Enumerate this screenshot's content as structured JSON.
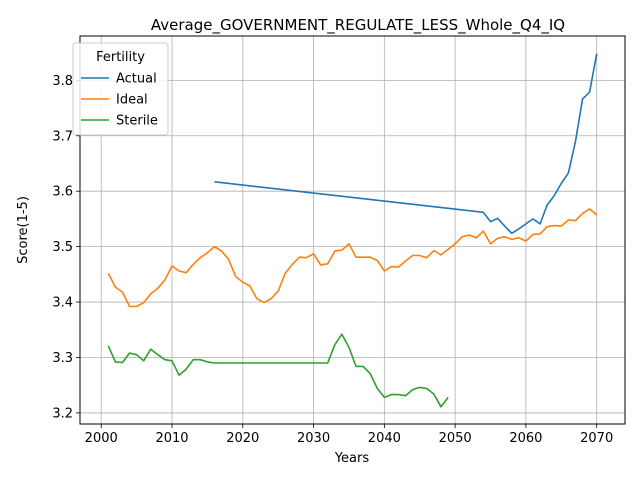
{
  "chart_data": {
    "type": "line",
    "title": "Average_GOVERNMENT_REGULATE_LESS_Whole_Q4_IQ",
    "xlabel": "Years",
    "ylabel": "Score(1-5)",
    "xlim": [
      1997,
      2074
    ],
    "ylim": [
      3.18,
      3.88
    ],
    "xticks": [
      2000,
      2010,
      2020,
      2030,
      2040,
      2050,
      2060,
      2070
    ],
    "yticks": [
      3.2,
      3.3,
      3.4,
      3.5,
      3.6,
      3.7,
      3.8
    ],
    "grid": true,
    "legend": {
      "title": "Fertility",
      "placement": "top-left"
    },
    "series": [
      {
        "name": "Actual",
        "color": "#1f77b4",
        "x": [
          2016,
          2054,
          2055,
          2056,
          2057,
          2058,
          2059,
          2060,
          2061,
          2062,
          2063,
          2064,
          2065,
          2066,
          2067,
          2068,
          2069,
          2070
        ],
        "y": [
          3.617,
          3.562,
          3.545,
          3.551,
          3.537,
          3.524,
          3.532,
          3.541,
          3.55,
          3.541,
          3.575,
          3.592,
          3.614,
          3.633,
          3.69,
          3.766,
          3.779,
          3.848
        ]
      },
      {
        "name": "Ideal",
        "color": "#ff7f0e",
        "x": [
          2001,
          2002,
          2003,
          2004,
          2005,
          2006,
          2007,
          2008,
          2009,
          2010,
          2011,
          2012,
          2013,
          2014,
          2015,
          2016,
          2017,
          2018,
          2019,
          2020,
          2021,
          2022,
          2023,
          2024,
          2025,
          2026,
          2027,
          2028,
          2029,
          2030,
          2031,
          2032,
          2033,
          2034,
          2035,
          2036,
          2037,
          2038,
          2039,
          2040,
          2041,
          2042,
          2043,
          2044,
          2045,
          2046,
          2047,
          2048,
          2049,
          2050,
          2051,
          2052,
          2053,
          2054,
          2055,
          2056,
          2057,
          2058,
          2059,
          2060,
          2061,
          2062,
          2063,
          2064,
          2065,
          2066,
          2067,
          2068,
          2069,
          2070
        ],
        "y": [
          3.452,
          3.427,
          3.418,
          3.392,
          3.392,
          3.399,
          3.415,
          3.425,
          3.44,
          3.465,
          3.456,
          3.453,
          3.468,
          3.48,
          3.489,
          3.5,
          3.492,
          3.477,
          3.446,
          3.436,
          3.429,
          3.406,
          3.399,
          3.406,
          3.42,
          3.452,
          3.468,
          3.481,
          3.48,
          3.487,
          3.467,
          3.469,
          3.492,
          3.494,
          3.505,
          3.481,
          3.481,
          3.481,
          3.475,
          3.456,
          3.464,
          3.463,
          3.474,
          3.484,
          3.484,
          3.48,
          3.493,
          3.485,
          3.495,
          3.505,
          3.518,
          3.521,
          3.516,
          3.528,
          3.505,
          3.515,
          3.518,
          3.513,
          3.516,
          3.51,
          3.522,
          3.523,
          3.536,
          3.538,
          3.537,
          3.548,
          3.547,
          3.56,
          3.568,
          3.557
        ]
      },
      {
        "name": "Sterile",
        "color": "#2ca02c",
        "x": [
          2001,
          2002,
          2003,
          2004,
          2005,
          2006,
          2007,
          2008,
          2009,
          2010,
          2011,
          2012,
          2013,
          2014,
          2015,
          2016,
          2017,
          2018,
          2019,
          2020,
          2021,
          2022,
          2023,
          2024,
          2025,
          2026,
          2027,
          2028,
          2029,
          2030,
          2031,
          2032,
          2033,
          2034,
          2035,
          2036,
          2037,
          2038,
          2039,
          2040,
          2041,
          2042,
          2043,
          2044,
          2045,
          2046,
          2047,
          2048,
          2049
        ],
        "y": [
          3.321,
          3.292,
          3.291,
          3.308,
          3.305,
          3.294,
          3.315,
          3.305,
          3.296,
          3.294,
          3.268,
          3.279,
          3.296,
          3.296,
          3.292,
          3.29,
          3.29,
          3.29,
          3.29,
          3.29,
          3.29,
          3.29,
          3.29,
          3.29,
          3.29,
          3.29,
          3.29,
          3.29,
          3.29,
          3.29,
          3.29,
          3.29,
          3.323,
          3.342,
          3.318,
          3.284,
          3.284,
          3.271,
          3.244,
          3.228,
          3.233,
          3.233,
          3.231,
          3.242,
          3.246,
          3.244,
          3.234,
          3.211,
          3.228
        ]
      }
    ]
  }
}
